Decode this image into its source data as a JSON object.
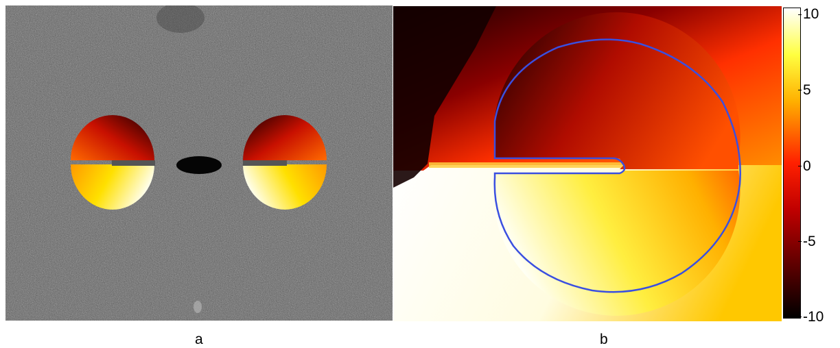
{
  "panels": [
    {
      "id": "a",
      "caption": "a"
    },
    {
      "id": "b",
      "caption": "b"
    }
  ],
  "colorbar": {
    "ticks": [
      "10",
      "5",
      "0",
      "-5",
      "-10"
    ],
    "range": [
      -10,
      10
    ],
    "colormap": "hot"
  },
  "colors": {
    "contour": "#3a4fe0",
    "background_gray": "#6f6f6f",
    "hot_dark": "#1a0000",
    "hot_red": "#ff2000",
    "hot_yellow": "#ffe000",
    "hot_white": "#ffffff"
  }
}
